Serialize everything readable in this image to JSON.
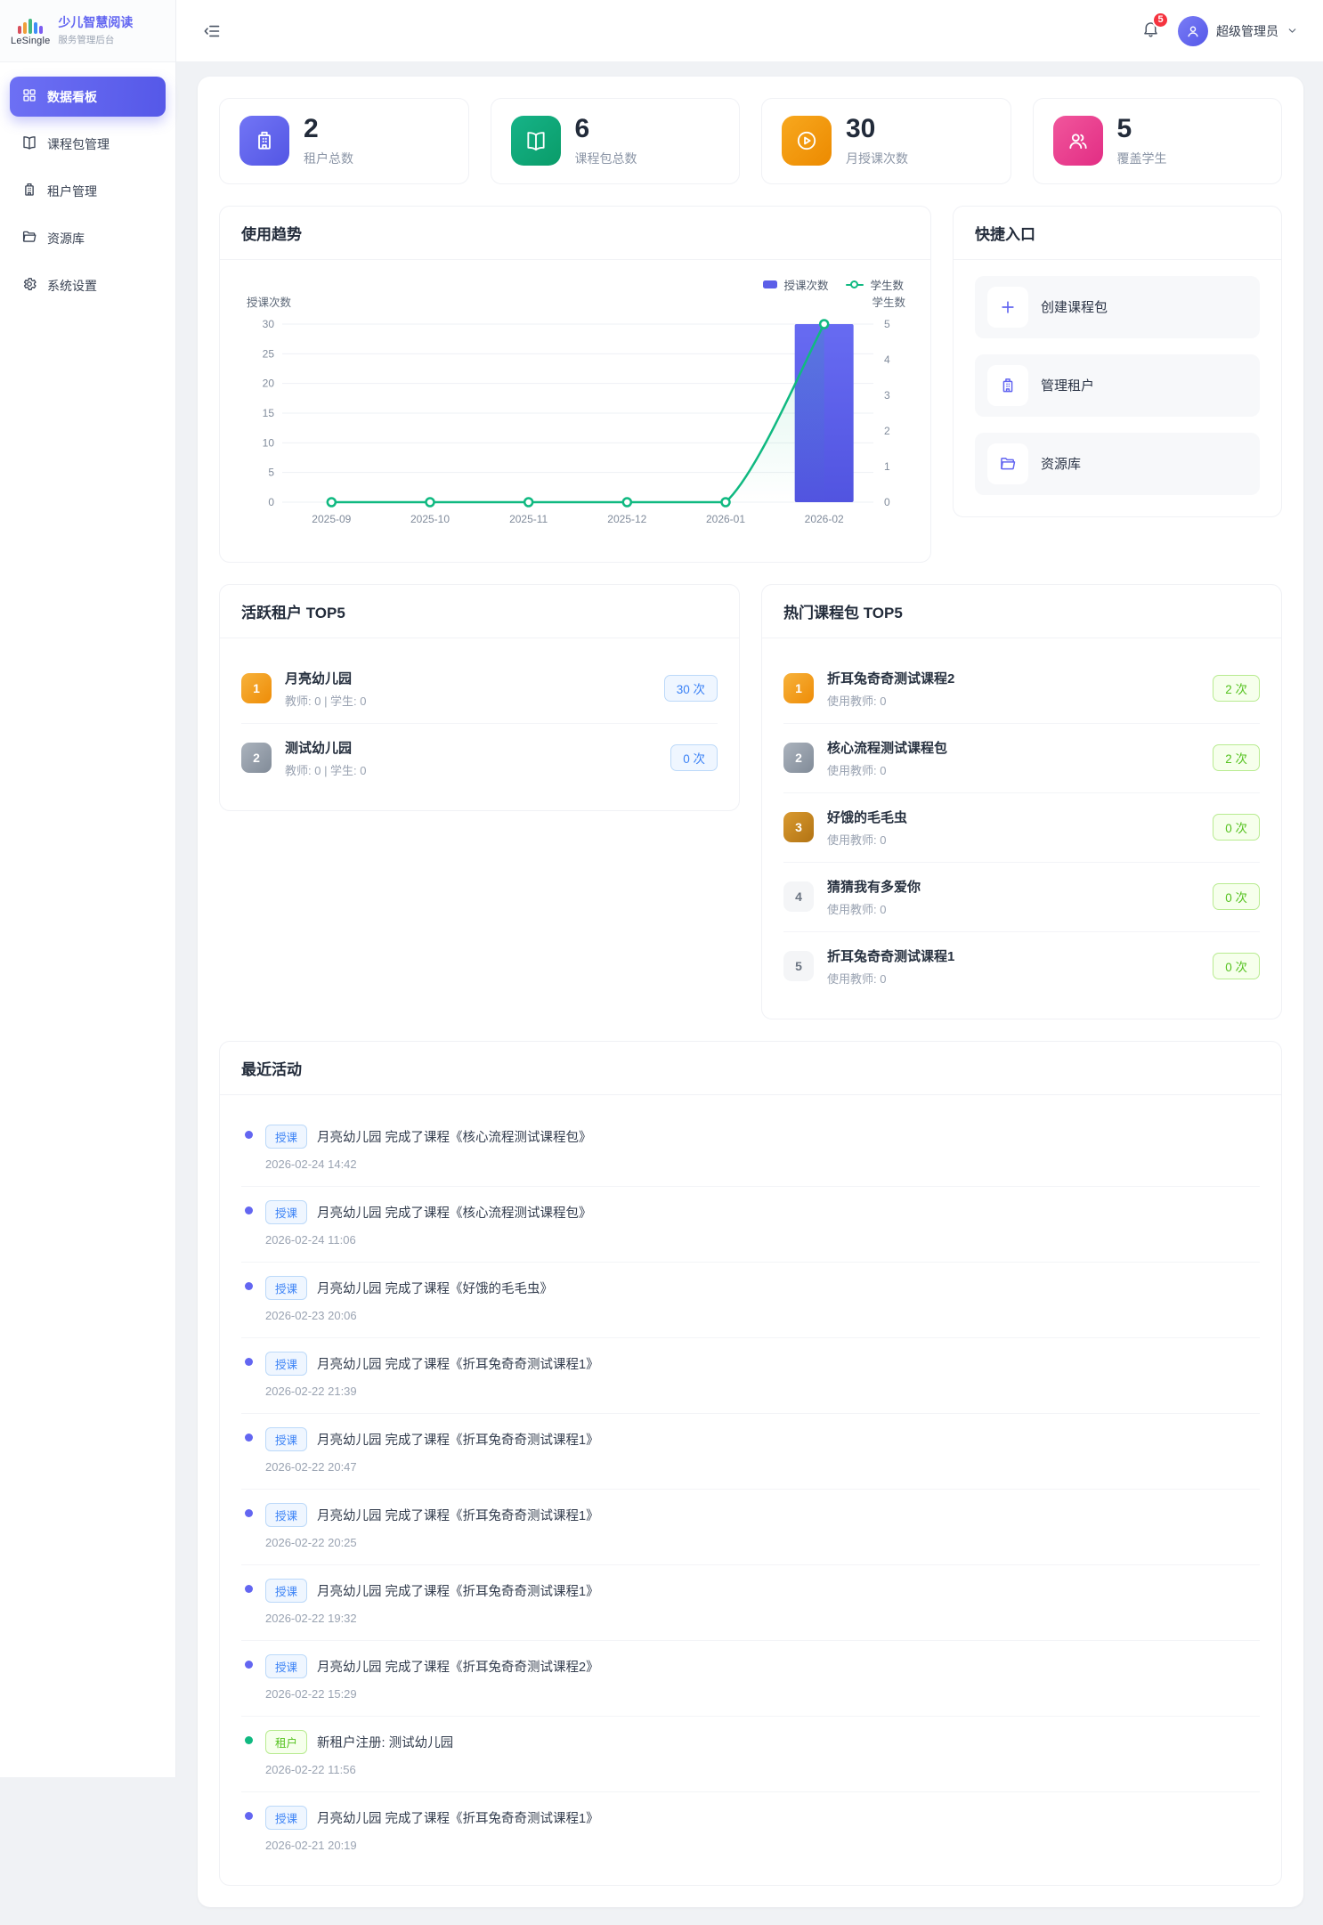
{
  "app": {
    "logo_text": "LeSingle",
    "title": "少儿智慧阅读",
    "subtitle": "服务管理后台"
  },
  "header": {
    "notification_count": "5",
    "user_name": "超级管理员"
  },
  "sidebar": {
    "items": [
      {
        "label": "数据看板",
        "icon": "dashboard-icon",
        "active": true
      },
      {
        "label": "课程包管理",
        "icon": "book-icon",
        "active": false
      },
      {
        "label": "租户管理",
        "icon": "building-icon",
        "active": false
      },
      {
        "label": "资源库",
        "icon": "folder-icon",
        "active": false
      },
      {
        "label": "系统设置",
        "icon": "gear-icon",
        "active": false
      }
    ]
  },
  "stats": [
    {
      "value": "2",
      "label": "租户总数",
      "icon": "building-icon",
      "color": "#6366f1"
    },
    {
      "value": "6",
      "label": "课程包总数",
      "icon": "book-icon",
      "color": "#10a36e"
    },
    {
      "value": "30",
      "label": "月授课次数",
      "icon": "play-circle-icon",
      "color": "#f59e0b"
    },
    {
      "value": "5",
      "label": "覆盖学生",
      "icon": "people-icon",
      "color": "#e9368a"
    }
  ],
  "trend": {
    "title": "使用趋势"
  },
  "chart_data": {
    "type": "bar",
    "title": "使用趋势",
    "categories": [
      "2025-09",
      "2025-10",
      "2025-11",
      "2025-12",
      "2026-01",
      "2026-02"
    ],
    "series": [
      {
        "name": "授课次数",
        "type": "bar",
        "values": [
          0,
          0,
          0,
          0,
          0,
          30
        ],
        "color": "#5b5ee8",
        "axis": "left"
      },
      {
        "name": "学生数",
        "type": "line",
        "values": [
          0,
          0,
          0,
          0,
          0,
          5
        ],
        "color": "#10b981",
        "axis": "right"
      }
    ],
    "y_left": {
      "label": "授课次数",
      "min": 0,
      "max": 30,
      "step": 5
    },
    "y_right": {
      "label": "学生数",
      "min": 0,
      "max": 5,
      "step": 1
    },
    "legend_position": "top-right",
    "grid": "horizontal"
  },
  "quick_entry": {
    "title": "快捷入口",
    "items": [
      {
        "label": "创建课程包",
        "icon": "plus-icon"
      },
      {
        "label": "管理租户",
        "icon": "building-icon"
      },
      {
        "label": "资源库",
        "icon": "folder-icon"
      }
    ]
  },
  "active_tenants": {
    "title": "活跃租户 TOP5",
    "items": [
      {
        "rank": "1",
        "name": "月亮幼儿园",
        "meta": "教师: 0 | 学生: 0",
        "count": "30 次"
      },
      {
        "rank": "2",
        "name": "测试幼儿园",
        "meta": "教师: 0 | 学生: 0",
        "count": "0 次"
      }
    ]
  },
  "hot_packages": {
    "title": "热门课程包 TOP5",
    "items": [
      {
        "rank": "1",
        "name": "折耳兔奇奇测试课程2",
        "meta": "使用教师: 0",
        "count": "2 次"
      },
      {
        "rank": "2",
        "name": "核心流程测试课程包",
        "meta": "使用教师: 0",
        "count": "2 次"
      },
      {
        "rank": "3",
        "name": "好饿的毛毛虫",
        "meta": "使用教师: 0",
        "count": "0 次"
      },
      {
        "rank": "4",
        "name": "猜猜我有多爱你",
        "meta": "使用教师: 0",
        "count": "0 次"
      },
      {
        "rank": "5",
        "name": "折耳兔奇奇测试课程1",
        "meta": "使用教师: 0",
        "count": "0 次"
      }
    ]
  },
  "activities": {
    "title": "最近活动",
    "items": [
      {
        "type": "teach",
        "tag": "授课",
        "text": "月亮幼儿园 完成了课程《核心流程测试课程包》",
        "time": "2026-02-24 14:42"
      },
      {
        "type": "teach",
        "tag": "授课",
        "text": "月亮幼儿园 完成了课程《核心流程测试课程包》",
        "time": "2026-02-24 11:06"
      },
      {
        "type": "teach",
        "tag": "授课",
        "text": "月亮幼儿园 完成了课程《好饿的毛毛虫》",
        "time": "2026-02-23 20:06"
      },
      {
        "type": "teach",
        "tag": "授课",
        "text": "月亮幼儿园 完成了课程《折耳兔奇奇测试课程1》",
        "time": "2026-02-22 21:39"
      },
      {
        "type": "teach",
        "tag": "授课",
        "text": "月亮幼儿园 完成了课程《折耳兔奇奇测试课程1》",
        "time": "2026-02-22 20:47"
      },
      {
        "type": "teach",
        "tag": "授课",
        "text": "月亮幼儿园 完成了课程《折耳兔奇奇测试课程1》",
        "time": "2026-02-22 20:25"
      },
      {
        "type": "teach",
        "tag": "授课",
        "text": "月亮幼儿园 完成了课程《折耳兔奇奇测试课程1》",
        "time": "2026-02-22 19:32"
      },
      {
        "type": "teach",
        "tag": "授课",
        "text": "月亮幼儿园 完成了课程《折耳兔奇奇测试课程2》",
        "time": "2026-02-22 15:29"
      },
      {
        "type": "tenant",
        "tag": "租户",
        "text": "新租户注册: 测试幼儿园",
        "time": "2026-02-22 11:56"
      },
      {
        "type": "teach",
        "tag": "授课",
        "text": "月亮幼儿园 完成了课程《折耳兔奇奇测试课程1》",
        "time": "2026-02-21 20:19"
      }
    ]
  }
}
